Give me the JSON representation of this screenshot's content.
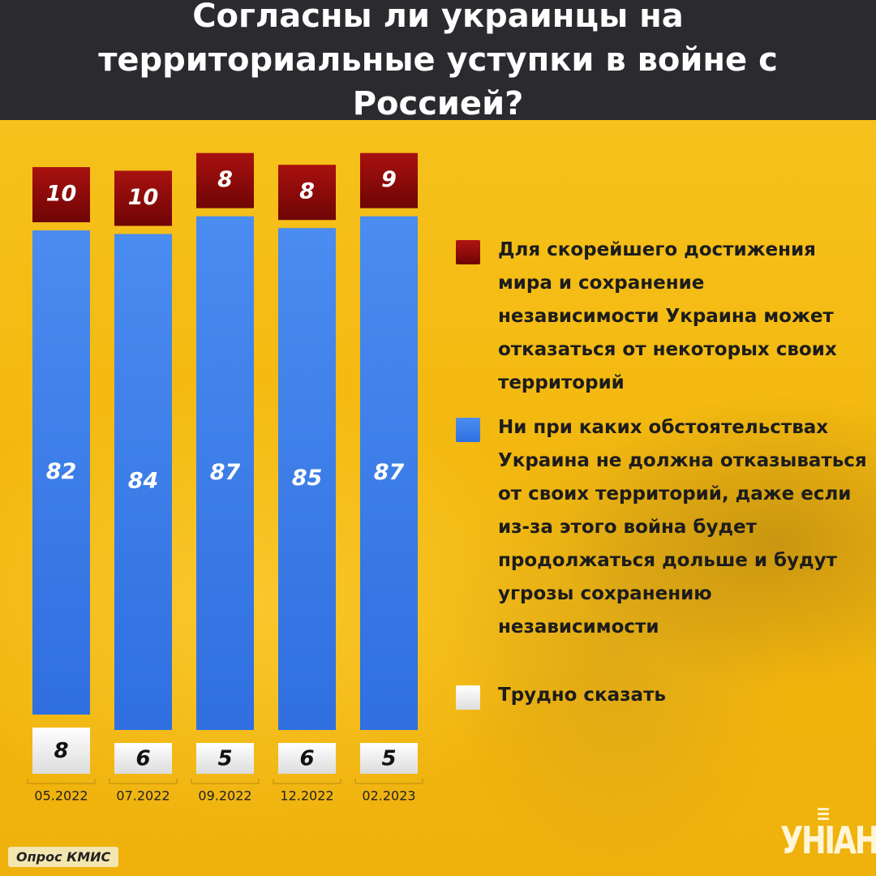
{
  "title": "Согласны ли украинцы на территориальные уступки в войне с Россией?",
  "colors": {
    "red": "#8b0a0a",
    "blue": "#3b7de8",
    "white": "#f2f2f2",
    "header_bg": "#2b2b2f",
    "bg": "#f3b80f"
  },
  "chart_data": {
    "type": "bar",
    "stacked": true,
    "categories": [
      "05.2022",
      "07.2022",
      "09.2022",
      "12.2022",
      "02.2023"
    ],
    "series": [
      {
        "name": "Для скорейшего достижения мира и сохранение независимости Украина может отказаться от некоторых своих территорий",
        "color": "#8b0a0a",
        "values": [
          10,
          10,
          8,
          8,
          9
        ]
      },
      {
        "name": "Ни при каких обстоятельствах Украина не должна отказываться от своих территорий, даже если из-за этого война будет продолжаться дольше и будут угрозы сохранению независимости",
        "color": "#3b7de8",
        "values": [
          82,
          84,
          87,
          85,
          87
        ]
      },
      {
        "name": "Трудно сказать",
        "color": "#f2f2f2",
        "values": [
          8,
          6,
          5,
          6,
          5
        ]
      }
    ],
    "legend_position": "right"
  },
  "legend": [
    {
      "icon": "red-square-icon",
      "label": "Для скорейшего достижения мира и сохранение независимости Украина может отказаться от некоторых своих территорий"
    },
    {
      "icon": "blue-square-icon",
      "label": "Ни при каких обстоятельствах Украина не должна отказываться от своих территорий, даже если из-за этого война будет продолжаться дольше и будут угрозы сохранению независимости"
    },
    {
      "icon": "white-square-icon",
      "label": "Трудно сказать"
    }
  ],
  "source": "Опрос КМИС",
  "logo": "УНІАН"
}
